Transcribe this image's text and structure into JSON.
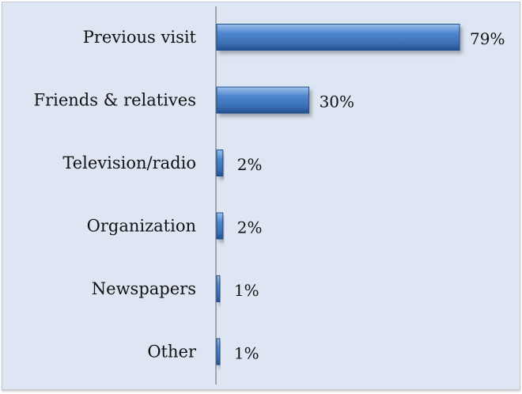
{
  "chart_data": {
    "type": "bar",
    "orientation": "horizontal",
    "categories": [
      "Previous visit",
      "Friends & relatives",
      "Television/radio",
      "Organization",
      "Newspapers",
      "Other"
    ],
    "values": [
      79,
      30,
      2,
      2,
      1,
      1
    ],
    "value_labels": [
      "79%",
      "30%",
      "2%",
      "2%",
      "1%",
      "1%"
    ],
    "unit": "%",
    "xlim": [
      0,
      79
    ],
    "grid": false,
    "legend": "none",
    "title": "",
    "xlabel": "",
    "ylabel": "",
    "colors": {
      "bar": "#3f74b8",
      "bar_highlight": "#8fb6e6",
      "bar_dark": "#22508f",
      "background": "#dde6f2",
      "axis": "#7a7a7a"
    }
  }
}
